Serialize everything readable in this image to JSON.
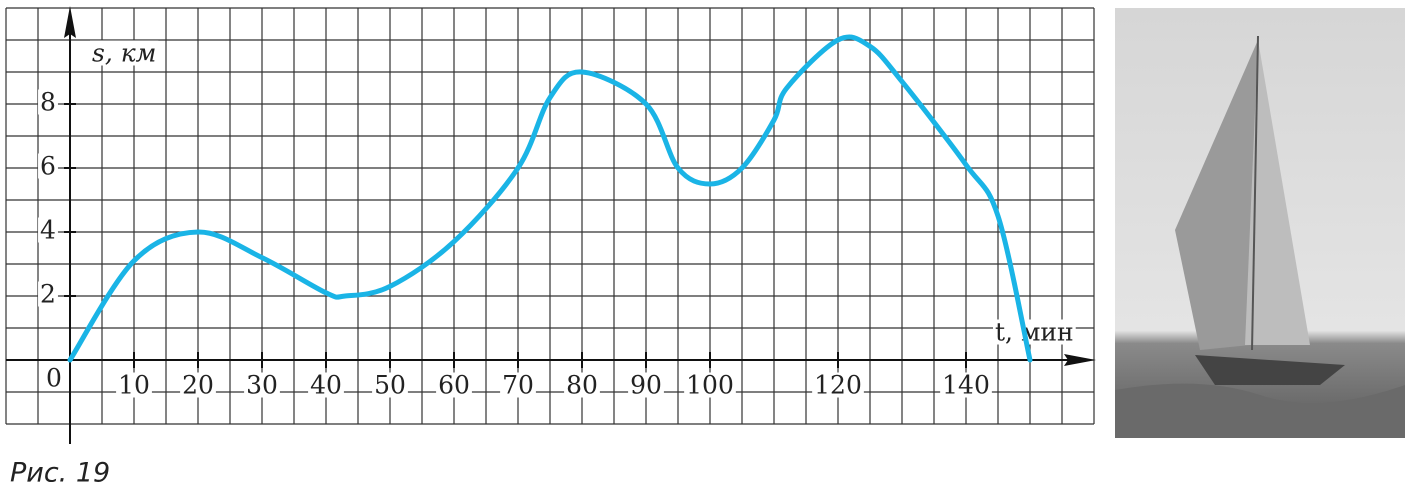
{
  "chart_data": {
    "type": "line",
    "caption": "Рис. 19",
    "y_label": "s, км",
    "x_label": "t, мин",
    "origin_label": "0",
    "x": [
      0,
      10,
      20,
      30,
      40,
      43,
      50,
      60,
      70,
      75,
      80,
      90,
      95,
      100,
      105,
      110,
      112,
      120,
      125,
      130,
      140,
      145,
      150
    ],
    "series": [
      {
        "color": "#1ab4e6",
        "values": [
          0,
          3.1,
          4,
          3.2,
          2.1,
          2,
          2.3,
          3.7,
          6,
          8.2,
          9,
          8,
          6,
          5.5,
          6,
          7.5,
          8.5,
          10,
          9.8,
          8.7,
          6.1,
          4.5,
          0
        ]
      }
    ],
    "xlim": [
      -10,
      160
    ],
    "ylim": [
      -2,
      11
    ],
    "xticks": [
      10,
      20,
      30,
      40,
      50,
      60,
      70,
      80,
      90,
      100,
      120,
      140
    ],
    "yticks": [
      2,
      4,
      6,
      8
    ],
    "grid": true
  }
}
